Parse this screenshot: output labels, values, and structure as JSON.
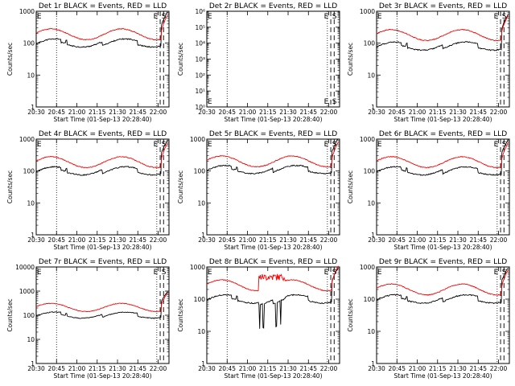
{
  "chart_data": [
    {
      "type": "line",
      "title": "Det 1r BLACK = Events, RED = LLD",
      "panel": "1r",
      "has_data": true,
      "ylabel": "Counts/sec",
      "xlabel": "Start Time (01-Sep-13 20:28:40)",
      "x_ticks": [
        "20:30",
        "20:45",
        "21:00",
        "21:15",
        "21:30",
        "21:45",
        "22:00"
      ],
      "y_ticks": [
        "1",
        "10",
        "100",
        "1000"
      ],
      "ylim": [
        1,
        1000
      ],
      "scale": "log",
      "markers": [
        "E",
        "E",
        "S"
      ],
      "series": [
        {
          "name": "Events",
          "color": "#000000"
        },
        {
          "name": "LLD",
          "color": "#ff0000"
        }
      ],
      "base_events": 100,
      "base_lld": 190,
      "lld_peak": 430
    },
    {
      "type": "line",
      "title": "Det 2r BLACK = Events, RED = LLD",
      "panel": "2r",
      "has_data": false,
      "ylabel": "Counts/sec",
      "xlabel": "Start Time (01-Sep-13 20:28:40)",
      "x_ticks": [
        "20:30",
        "20:45",
        "21:00",
        "21:15",
        "21:30",
        "21:45",
        "22:00"
      ],
      "y_ticks": [
        "10⁰",
        "10¹",
        "10²",
        "10³",
        "10⁴",
        "10⁵",
        "10⁶"
      ],
      "ylim": [
        1,
        1000000
      ],
      "scale": "log",
      "markers": [
        "E",
        "E",
        "S"
      ],
      "series": []
    },
    {
      "type": "line",
      "title": "Det 3r BLACK = Events, RED = LLD",
      "panel": "3r",
      "has_data": true,
      "ylabel": "Counts/sec",
      "xlabel": "Start Time (01-Sep-13 20:28:40)",
      "x_ticks": [
        "20:30",
        "20:45",
        "21:00",
        "21:15",
        "21:30",
        "21:45",
        "22:00"
      ],
      "y_ticks": [
        "1",
        "10",
        "100",
        "1000"
      ],
      "ylim": [
        1,
        1000
      ],
      "scale": "log",
      "markers": [
        "E",
        "E",
        "S"
      ],
      "series": [
        {
          "name": "Events",
          "color": "#000000"
        },
        {
          "name": "LLD",
          "color": "#ff0000"
        }
      ],
      "base_events": 80,
      "base_lld": 180,
      "lld_peak": 380
    },
    {
      "type": "line",
      "title": "Det 4r BLACK = Events, RED = LLD",
      "panel": "4r",
      "has_data": true,
      "ylabel": "Counts/sec",
      "xlabel": "Start Time (01-Sep-13 20:28:40)",
      "x_ticks": [
        "20:30",
        "20:45",
        "21:00",
        "21:15",
        "21:30",
        "21:45",
        "22:00"
      ],
      "y_ticks": [
        "1",
        "10",
        "100",
        "1000"
      ],
      "ylim": [
        1,
        1000
      ],
      "scale": "log",
      "markers": [
        "E",
        "E",
        "S"
      ],
      "series": [
        {
          "name": "Events",
          "color": "#000000"
        },
        {
          "name": "LLD",
          "color": "#ff0000"
        }
      ],
      "base_events": 100,
      "base_lld": 190,
      "lld_peak": 430
    },
    {
      "type": "line",
      "title": "Det 5r BLACK = Events, RED = LLD",
      "panel": "5r",
      "has_data": true,
      "ylabel": "Counts/sec",
      "xlabel": "Start Time (01-Sep-13 20:28:40)",
      "x_ticks": [
        "20:30",
        "20:45",
        "21:00",
        "21:15",
        "21:30",
        "21:45",
        "22:00"
      ],
      "y_ticks": [
        "1",
        "10",
        "100",
        "1000"
      ],
      "ylim": [
        1,
        1000
      ],
      "scale": "log",
      "markers": [
        "E",
        "E",
        "S"
      ],
      "series": [
        {
          "name": "Events",
          "color": "#000000"
        },
        {
          "name": "LLD",
          "color": "#ff0000"
        }
      ],
      "base_events": 110,
      "base_lld": 200,
      "lld_peak": 430
    },
    {
      "type": "line",
      "title": "Det 6r BLACK = Events, RED = LLD",
      "panel": "6r",
      "has_data": true,
      "ylabel": "Counts/sec",
      "xlabel": "Start Time (01-Sep-13 20:28:40)",
      "x_ticks": [
        "20:30",
        "20:45",
        "21:00",
        "21:15",
        "21:30",
        "21:45",
        "22:00"
      ],
      "y_ticks": [
        "1",
        "10",
        "100",
        "1000"
      ],
      "ylim": [
        1,
        1000
      ],
      "scale": "log",
      "markers": [
        "E",
        "E",
        "S"
      ],
      "series": [
        {
          "name": "Events",
          "color": "#000000"
        },
        {
          "name": "LLD",
          "color": "#ff0000"
        }
      ],
      "base_events": 100,
      "base_lld": 190,
      "lld_peak": 430
    },
    {
      "type": "line",
      "title": "Det 7r BLACK = Events, RED = LLD",
      "panel": "7r",
      "has_data": true,
      "ylabel": "Counts/sec",
      "xlabel": "Start Time (01-Sep-13 20:28:40)",
      "x_ticks": [
        "20:30",
        "20:45",
        "21:00",
        "21:15",
        "21:30",
        "21:45",
        "22:00"
      ],
      "y_ticks": [
        "1",
        "10",
        "100",
        "1000",
        "10000"
      ],
      "ylim": [
        1,
        10000
      ],
      "scale": "log",
      "markers": [
        "E",
        "E",
        "S"
      ],
      "series": [
        {
          "name": "Events",
          "color": "#000000"
        },
        {
          "name": "LLD",
          "color": "#ff0000"
        }
      ],
      "base_events": 100,
      "base_lld": 210,
      "lld_peak": 460
    },
    {
      "type": "line",
      "title": "Det 8r BLACK = Events, RED = LLD",
      "panel": "8r",
      "has_data": true,
      "ylabel": "Counts/sec",
      "xlabel": "Start Time (01-Sep-13 20:28:40)",
      "x_ticks": [
        "20:30",
        "20:45",
        "21:00",
        "21:15",
        "21:30",
        "21:45",
        "22:00"
      ],
      "y_ticks": [
        "1",
        "10",
        "100",
        "1000"
      ],
      "ylim": [
        1,
        1000
      ],
      "scale": "log",
      "markers": [
        "E",
        "E",
        "S"
      ],
      "series": [
        {
          "name": "Events",
          "color": "#000000"
        },
        {
          "name": "LLD",
          "color": "#ff0000"
        }
      ],
      "base_events": 100,
      "base_lld": 270,
      "lld_peak": 400
    },
    {
      "type": "line",
      "title": "Det 9r BLACK = Events, RED = LLD",
      "panel": "9r",
      "has_data": true,
      "ylabel": "Counts/sec",
      "xlabel": "Start Time (01-Sep-13 20:28:40)",
      "x_ticks": [
        "20:30",
        "20:45",
        "21:00",
        "21:15",
        "21:30",
        "21:45",
        "22:00"
      ],
      "y_ticks": [
        "1",
        "10",
        "100",
        "1000"
      ],
      "ylim": [
        1,
        1000
      ],
      "scale": "log",
      "markers": [
        "E",
        "E",
        "S"
      ],
      "series": [
        {
          "name": "Events",
          "color": "#000000"
        },
        {
          "name": "LLD",
          "color": "#ff0000"
        }
      ],
      "base_events": 100,
      "base_lld": 200,
      "lld_peak": 430
    }
  ]
}
